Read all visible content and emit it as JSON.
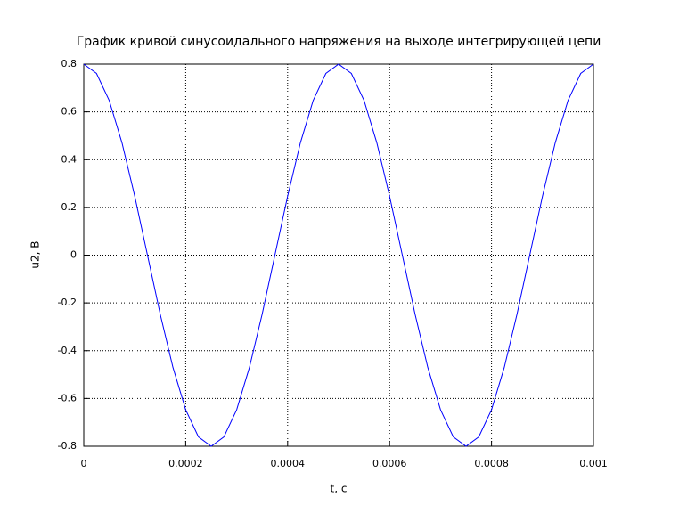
{
  "chart_data": {
    "type": "line",
    "title": "График кривой синусоидального напряжения на выходе интегрирующей цепи",
    "xlabel": "t, c",
    "ylabel": "u2, B",
    "x": [
      0,
      2.5e-05,
      5e-05,
      7.5e-05,
      0.0001,
      0.000125,
      0.00015,
      0.000175,
      0.0002,
      0.000225,
      0.00025,
      0.000275,
      0.0003,
      0.000325,
      0.00035,
      0.000375,
      0.0004,
      0.000425,
      0.00045,
      0.000475,
      0.0005,
      0.000525,
      0.00055,
      0.000575,
      0.0006,
      0.000625,
      0.00065,
      0.000675,
      0.0007,
      0.000725,
      0.00075,
      0.000775,
      0.0008,
      0.000825,
      0.00085,
      0.000875,
      0.0009,
      0.000925,
      0.00095,
      0.000975,
      0.001
    ],
    "series": [
      {
        "color": "#0000ff",
        "values": [
          0.8,
          0.7608,
          0.6472,
          0.4702,
          0.2472,
          0,
          -0.2472,
          -0.4702,
          -0.6472,
          -0.7608,
          -0.8,
          -0.7608,
          -0.6472,
          -0.4702,
          -0.2472,
          0,
          0.2472,
          0.4702,
          0.6472,
          0.7608,
          0.8,
          0.7608,
          0.6472,
          0.4702,
          0.2472,
          0,
          -0.2472,
          -0.4702,
          -0.6472,
          -0.7608,
          -0.8,
          -0.7608,
          -0.6472,
          -0.4702,
          -0.2472,
          0,
          0.2472,
          0.4702,
          0.6472,
          0.7608,
          0.8
        ]
      }
    ],
    "xlim": [
      0,
      0.001
    ],
    "xticks": [
      0,
      0.0002,
      0.0004,
      0.0006,
      0.0008,
      0.001
    ],
    "ylim": [
      -0.8,
      0.8
    ],
    "yticks": [
      -0.8,
      -0.6,
      -0.4,
      -0.2,
      0,
      0.2,
      0.4,
      0.6,
      0.8
    ],
    "grid": true
  }
}
